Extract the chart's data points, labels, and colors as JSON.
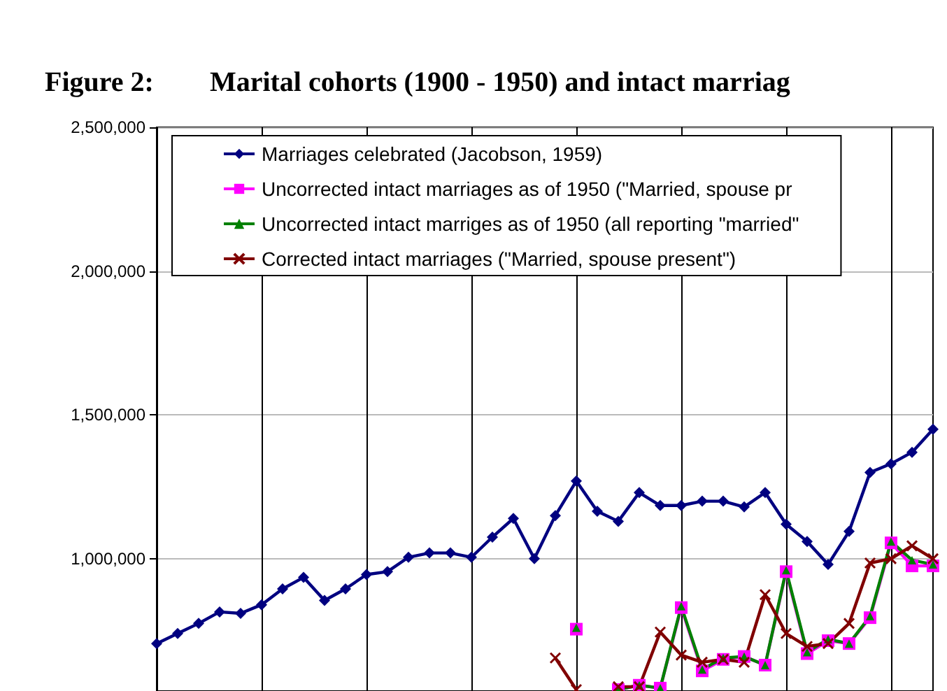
{
  "chart_data": {
    "type": "line",
    "title": "Figure 2:        Marital cohorts (1900 - 1950) and intact marriag",
    "categories": [
      null,
      null,
      null,
      null,
      null,
      null,
      null,
      null,
      null,
      null,
      null,
      null,
      null,
      null,
      null,
      null,
      null,
      null,
      null,
      null,
      null,
      null,
      null,
      null,
      null,
      null,
      null,
      null,
      null,
      null,
      null,
      null,
      null,
      null,
      null,
      null,
      null,
      null
    ],
    "series": [
      {
        "name": "Marriages celebrated (Jacobson, 1959)",
        "color": "#000080",
        "marker": "diamond",
        "values": [
          705000,
          740000,
          775000,
          815000,
          810000,
          840000,
          895000,
          935000,
          855000,
          895000,
          945000,
          955000,
          1005000,
          1020000,
          1020000,
          1005000,
          1075000,
          1140000,
          1000000,
          1150000,
          1270000,
          1165000,
          1130000,
          1230000,
          1185000,
          1185000,
          1200000,
          1200000,
          1180000,
          1230000,
          1120000,
          1060000,
          980000,
          1095000,
          1300000,
          1330000,
          1370000,
          1450000
        ]
      },
      {
        "name": "Uncorrected intact marriages as of 1950 (\"Married, spouse pr",
        "color": "#ff00ff",
        "marker": "square",
        "values": [
          null,
          null,
          null,
          null,
          null,
          null,
          null,
          null,
          null,
          null,
          null,
          null,
          null,
          null,
          null,
          null,
          null,
          null,
          null,
          null,
          755000,
          null,
          545000,
          560000,
          550000,
          830000,
          610000,
          650000,
          660000,
          630000,
          955000,
          670000,
          715000,
          705000,
          795000,
          1055000,
          975000,
          975000
        ]
      },
      {
        "name": "Uncorrected intact marriges as of 1950 (all reporting \"married\"",
        "color": "#008000",
        "marker": "triangle",
        "values": [
          null,
          null,
          null,
          null,
          null,
          null,
          null,
          null,
          null,
          null,
          null,
          null,
          null,
          null,
          null,
          null,
          null,
          null,
          null,
          null,
          760000,
          null,
          545000,
          560000,
          550000,
          835000,
          615000,
          655000,
          660000,
          630000,
          960000,
          675000,
          720000,
          705000,
          800000,
          1060000,
          995000,
          980000
        ]
      },
      {
        "name": "Corrected intact marriages (\"Married, spouse present\")",
        "color": "#800000",
        "marker": "cross",
        "values": [
          null,
          null,
          null,
          null,
          null,
          null,
          null,
          null,
          null,
          null,
          null,
          null,
          null,
          null,
          null,
          null,
          null,
          null,
          null,
          655000,
          545000,
          null,
          555000,
          555000,
          745000,
          665000,
          640000,
          650000,
          640000,
          875000,
          740000,
          695000,
          705000,
          775000,
          985000,
          1000000,
          1045000,
          1000000
        ]
      }
    ],
    "ylim": [
      540000,
      2500000
    ],
    "yticks": [
      {
        "value": 1000000,
        "label": "1,000,000"
      },
      {
        "value": 1500000,
        "label": "1,500,000"
      },
      {
        "value": 2000000,
        "label": "2,000,000"
      },
      {
        "value": 2500000,
        "label": "2,500,000"
      }
    ],
    "grid": true,
    "legend": "top",
    "tick_labels": "y"
  }
}
